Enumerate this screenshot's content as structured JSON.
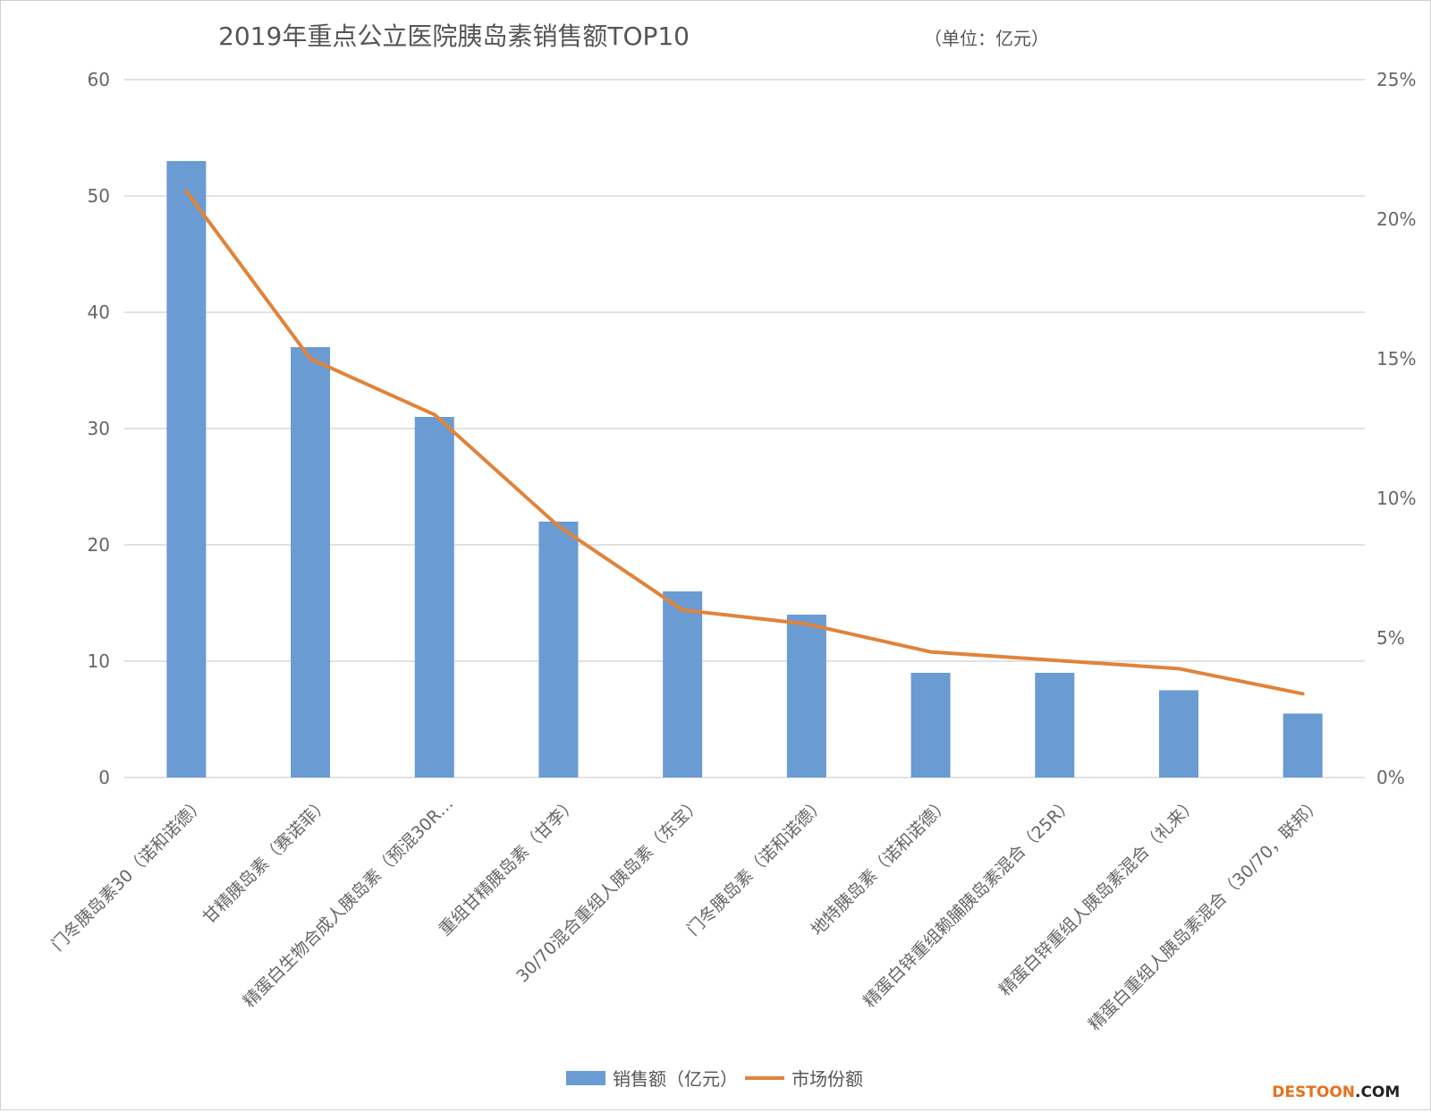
{
  "chart_data": {
    "type": "bar",
    "title": "2019年重点公立医院胰岛素销售额TOP10",
    "unit_note": "（单位：亿元）",
    "categories": [
      "门冬胰岛素30（诺和诺德）",
      "甘精胰岛素（赛诺菲）",
      "精蛋白生物合成人胰岛素（预混30R…",
      "重组甘精胰岛素（甘李）",
      "30/70混合重组人胰岛素（东宝）",
      "门冬胰岛素（诺和诺德）",
      "地特胰岛素（诺和诺德）",
      "精蛋白锌重组赖脯胰岛素混合（25R）",
      "精蛋白锌重组人胰岛素混合（礼来）",
      "精蛋白重组人胰岛素混合（30/70，联邦）"
    ],
    "series": [
      {
        "name": "销售额（亿元）",
        "type": "bar",
        "axis": "left",
        "color": "#6a9bd3",
        "values": [
          53,
          37,
          31,
          22,
          16,
          14,
          9,
          9,
          7.5,
          5.5
        ]
      },
      {
        "name": "市场份额",
        "type": "line",
        "axis": "right",
        "color": "#e0833a",
        "values": [
          21,
          15,
          13,
          9,
          6,
          5.5,
          4.5,
          4.2,
          3.9,
          3.0
        ]
      }
    ],
    "y_left": {
      "min": 0,
      "max": 60,
      "ticks": [
        "0",
        "10",
        "20",
        "30",
        "40",
        "50",
        "60"
      ]
    },
    "y_right": {
      "min": 0,
      "max": 25,
      "ticks": [
        "0%",
        "5%",
        "10%",
        "15%",
        "20%",
        "25%"
      ]
    },
    "grid": true,
    "legend_position": "bottom"
  },
  "watermark": {
    "brand": "DESTOON",
    "suffix": ".COM"
  }
}
